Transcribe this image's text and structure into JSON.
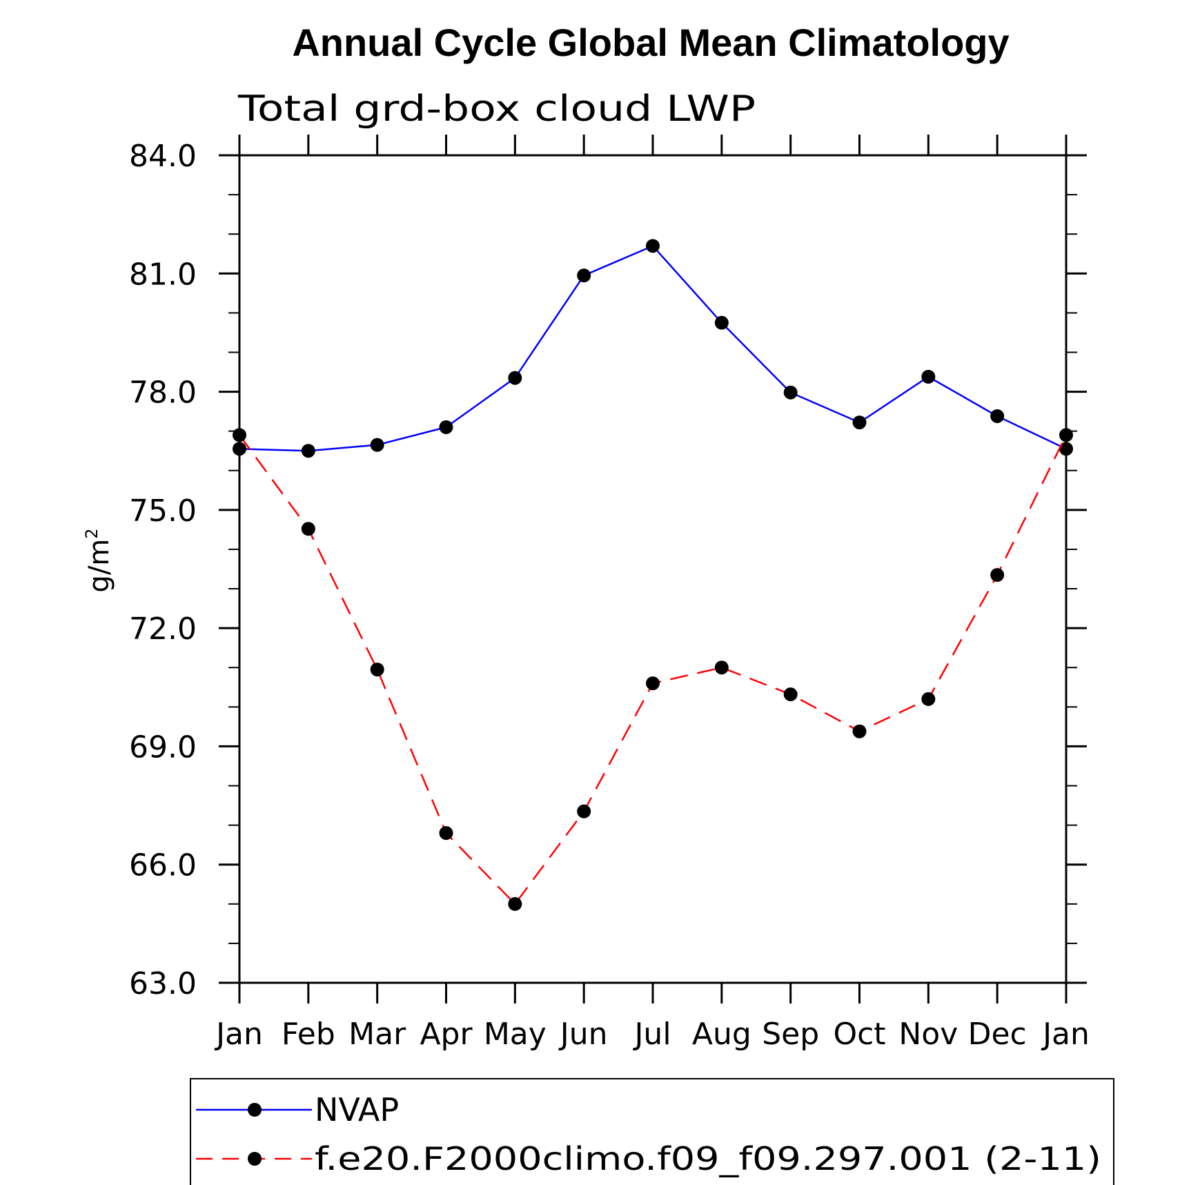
{
  "chart_data": {
    "type": "line",
    "title": "Annual Cycle Global Mean Climatology",
    "subtitle": "Total grd-box cloud LWP",
    "xlabel": "",
    "ylabel": "g/m",
    "ylabel_superscript": "2",
    "ylim": [
      63.0,
      84.0
    ],
    "y_major_ticks": [
      63.0,
      66.0,
      69.0,
      72.0,
      75.0,
      78.0,
      81.0,
      84.0
    ],
    "y_tick_labels": [
      "63.0",
      "66.0",
      "69.0",
      "72.0",
      "75.0",
      "78.0",
      "81.0",
      "84.0"
    ],
    "y_minor_step": 1.0,
    "categories": [
      "Jan",
      "Feb",
      "Mar",
      "Apr",
      "May",
      "Jun",
      "Jul",
      "Aug",
      "Sep",
      "Oct",
      "Nov",
      "Dec",
      "Jan"
    ],
    "series": [
      {
        "name": "NVAP",
        "color": "#0000ff",
        "dash": "solid",
        "values": [
          76.55,
          76.5,
          76.65,
          77.1,
          78.35,
          80.95,
          81.7,
          79.75,
          77.98,
          77.22,
          78.38,
          77.38,
          76.55
        ]
      },
      {
        "name": "f.e20.F2000climo.f09_f09.297.001 (2-11)",
        "color": "#ff0000",
        "dash": "dashed",
        "values": [
          76.9,
          74.52,
          70.95,
          66.8,
          65.0,
          67.35,
          70.6,
          71.0,
          70.32,
          69.38,
          70.2,
          73.35,
          76.9
        ]
      }
    ],
    "legend_position": "bottom",
    "marker_color": "#000000"
  }
}
